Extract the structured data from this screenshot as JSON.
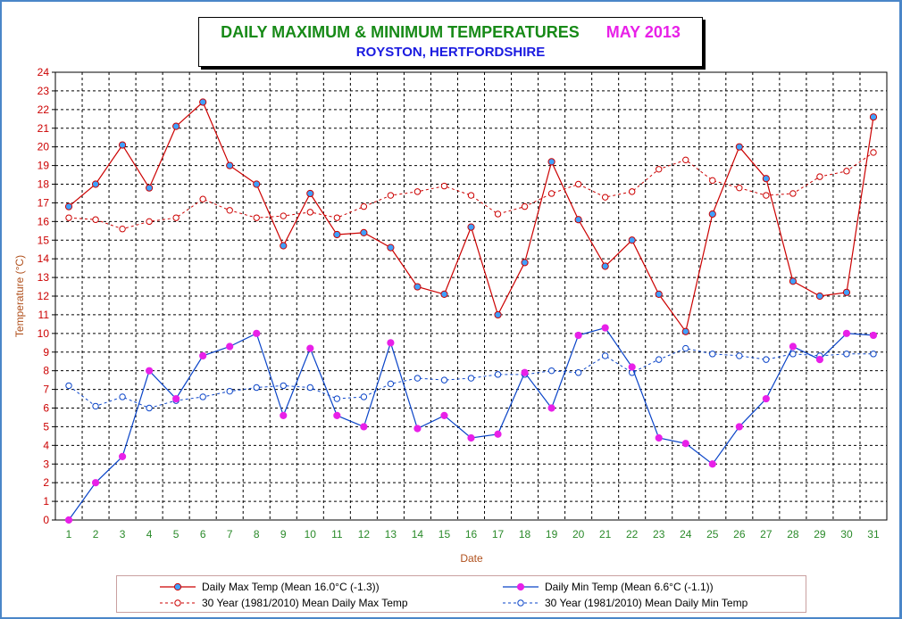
{
  "colors": {
    "max_line": "#cc0000",
    "min_line": "#0a44c8",
    "max_avg_line": "#cc0000",
    "min_avg_line": "#0a44c8",
    "marker_fill_max": "#3fa0ff",
    "marker_fill_min": "#e820e8",
    "tick_label_y": "#cc0000",
    "tick_label_x": "#2a8a2a",
    "axis_label": "#b0501c",
    "frame": "#4a86c8"
  },
  "chart_data": {
    "type": "line",
    "title": "DAILY MAXIMUM & MINIMUM TEMPERATURES",
    "title_month": "MAY 2013",
    "subtitle": "ROYSTON, HERTFORDSHIRE",
    "xlabel": "Date",
    "ylabel": "Temperature (°C)",
    "ylim": [
      0,
      24
    ],
    "yticks": [
      "0",
      "1",
      "2",
      "3",
      "4",
      "5",
      "6",
      "7",
      "8",
      "9",
      "10",
      "11",
      "12",
      "13",
      "14",
      "15",
      "16",
      "17",
      "18",
      "19",
      "20",
      "21",
      "22",
      "23",
      "24"
    ],
    "grid": true,
    "legend_position": "bottom",
    "x": [
      1,
      2,
      3,
      4,
      5,
      6,
      7,
      8,
      9,
      10,
      11,
      12,
      13,
      14,
      15,
      16,
      17,
      18,
      19,
      20,
      21,
      22,
      23,
      24,
      25,
      26,
      27,
      28,
      29,
      30,
      31
    ],
    "series": [
      {
        "name": "Daily Max Temp (Mean 16.0°C (-1.3))",
        "style": "solid",
        "values": [
          16.8,
          18.0,
          20.1,
          17.8,
          21.1,
          22.4,
          19.0,
          18.0,
          14.7,
          17.5,
          15.3,
          15.4,
          14.6,
          12.5,
          12.1,
          15.7,
          11.0,
          13.8,
          19.2,
          16.1,
          13.6,
          15.0,
          12.1,
          10.1,
          16.4,
          20.0,
          18.3,
          12.8,
          12.0,
          12.2,
          21.6
        ]
      },
      {
        "name": "30 Year (1981/2010) Mean Daily Max Temp",
        "style": "dashed",
        "values": [
          16.2,
          16.1,
          15.6,
          16.0,
          16.2,
          17.2,
          16.6,
          16.2,
          16.3,
          16.5,
          16.2,
          16.8,
          17.4,
          17.6,
          17.9,
          17.4,
          16.4,
          16.8,
          17.5,
          18.0,
          17.3,
          17.6,
          18.8,
          19.3,
          18.2,
          17.8,
          17.4,
          17.5,
          18.4,
          18.7,
          19.7
        ]
      },
      {
        "name": "Daily Min Temp (Mean 6.6°C (-1.1))",
        "style": "solid",
        "values": [
          0.0,
          2.0,
          3.4,
          8.0,
          6.5,
          8.8,
          9.3,
          10.0,
          5.6,
          9.2,
          5.6,
          5.0,
          9.5,
          4.9,
          5.6,
          4.4,
          4.6,
          7.9,
          6.0,
          9.9,
          10.3,
          8.2,
          4.4,
          4.1,
          3.0,
          5.0,
          6.5,
          9.3,
          8.6,
          10.0,
          9.9
        ]
      },
      {
        "name": "30 Year (1981/2010) Mean Daily Min Temp",
        "style": "dashed",
        "values": [
          7.2,
          6.1,
          6.6,
          6.0,
          6.4,
          6.6,
          6.9,
          7.1,
          7.2,
          7.1,
          6.5,
          6.6,
          7.3,
          7.6,
          7.5,
          7.6,
          7.8,
          7.8,
          8.0,
          7.9,
          8.8,
          7.9,
          8.6,
          9.2,
          8.9,
          8.8,
          8.6,
          8.9,
          8.8,
          8.9,
          8.9
        ]
      }
    ]
  }
}
